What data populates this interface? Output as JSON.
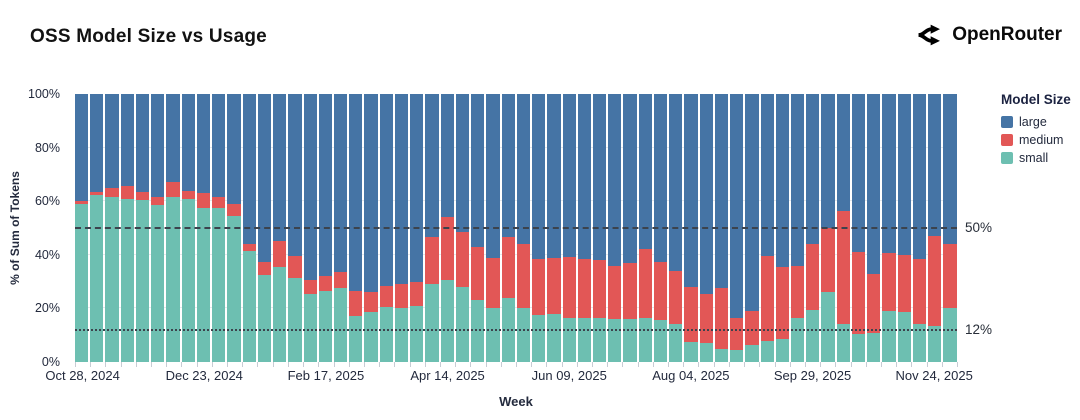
{
  "header": {
    "title": "OSS Model Size vs Usage",
    "brand": "OpenRouter"
  },
  "chart_data": {
    "type": "bar",
    "stacked": true,
    "title": "OSS Model Size vs Usage",
    "xlabel": "Week",
    "ylabel": "% of Sum of Tokens",
    "ylim": [
      0,
      100
    ],
    "y_ticks": [
      0,
      20,
      40,
      60,
      80,
      100
    ],
    "y_tick_suffix": "%",
    "grid": "horizontal",
    "legend": {
      "title": "Model Size",
      "position": "right",
      "entries": [
        {
          "name": "large",
          "color": "#4574a5"
        },
        {
          "name": "medium",
          "color": "#e25756"
        },
        {
          "name": "small",
          "color": "#6dbfb1"
        }
      ]
    },
    "reference_lines": [
      {
        "value": 50,
        "label": "50%",
        "style": "dashed"
      },
      {
        "value": 12,
        "label": "12%",
        "style": "dotted"
      }
    ],
    "x_ticks": [
      {
        "index": 0,
        "label": "Oct 28, 2024"
      },
      {
        "index": 8,
        "label": "Dec 23, 2024"
      },
      {
        "index": 16,
        "label": "Feb 17, 2025"
      },
      {
        "index": 24,
        "label": "Apr 14, 2025"
      },
      {
        "index": 32,
        "label": "Jun 09, 2025"
      },
      {
        "index": 40,
        "label": "Aug 04, 2025"
      },
      {
        "index": 48,
        "label": "Sep 29, 2025"
      },
      {
        "index": 56,
        "label": "Nov 24, 2025"
      }
    ],
    "categories": [
      "2024-10-28",
      "2024-11-04",
      "2024-11-11",
      "2024-11-18",
      "2024-11-25",
      "2024-12-02",
      "2024-12-09",
      "2024-12-16",
      "2024-12-23",
      "2024-12-30",
      "2025-01-06",
      "2025-01-13",
      "2025-01-20",
      "2025-01-27",
      "2025-02-03",
      "2025-02-10",
      "2025-02-17",
      "2025-02-24",
      "2025-03-03",
      "2025-03-10",
      "2025-03-17",
      "2025-03-24",
      "2025-03-31",
      "2025-04-07",
      "2025-04-14",
      "2025-04-21",
      "2025-04-28",
      "2025-05-05",
      "2025-05-12",
      "2025-05-19",
      "2025-05-26",
      "2025-06-02",
      "2025-06-09",
      "2025-06-16",
      "2025-06-23",
      "2025-06-30",
      "2025-07-07",
      "2025-07-14",
      "2025-07-21",
      "2025-07-28",
      "2025-08-04",
      "2025-08-11",
      "2025-08-18",
      "2025-08-25",
      "2025-09-01",
      "2025-09-08",
      "2025-09-15",
      "2025-09-22",
      "2025-09-29",
      "2025-10-06",
      "2025-10-13",
      "2025-10-20",
      "2025-10-27",
      "2025-11-03",
      "2025-11-10",
      "2025-11-17",
      "2025-11-24",
      "2025-12-01"
    ],
    "series": [
      {
        "name": "small",
        "color": "#6dbfb1",
        "values": [
          59,
          62.5,
          61.5,
          61,
          60.5,
          58.5,
          61.5,
          61,
          57.5,
          57.5,
          54.5,
          41.5,
          32.5,
          35.5,
          31.5,
          25.5,
          26.5,
          27.5,
          17,
          18.5,
          20.5,
          20,
          21,
          29,
          30.5,
          28,
          23,
          20,
          24,
          20,
          17.5,
          18,
          16.5,
          16.5,
          16.5,
          16,
          16,
          16.5,
          15.5,
          14,
          7.5,
          7,
          5,
          4.5,
          6.5,
          8,
          8.5,
          16.5,
          19.5,
          26,
          14,
          10.5,
          11,
          19,
          18.5,
          14,
          13.5,
          20
        ]
      },
      {
        "name": "medium",
        "color": "#e25756",
        "values": [
          1,
          1,
          3.5,
          4.5,
          3,
          3,
          5.5,
          3,
          5.5,
          4,
          4.5,
          2.5,
          5,
          9.5,
          8,
          5,
          5.5,
          6,
          9.5,
          7.5,
          8,
          9,
          9,
          17.5,
          23.5,
          20.5,
          20,
          19,
          22.5,
          24,
          21,
          21,
          22.5,
          22,
          21.5,
          20,
          21,
          25.5,
          22,
          20,
          20.5,
          18.5,
          22.5,
          12,
          12.5,
          31.5,
          27,
          19.5,
          24.5,
          24,
          42.5,
          30.5,
          22,
          21.5,
          21.5,
          24.5,
          33.5,
          24
        ]
      },
      {
        "name": "large",
        "color": "#4574a5",
        "values": [
          40,
          36.5,
          35,
          34.5,
          36.5,
          38.5,
          33,
          36,
          37,
          38.5,
          41,
          56,
          62.5,
          55,
          60.5,
          69.5,
          68,
          66.5,
          73.5,
          74,
          71.5,
          71,
          70,
          53.5,
          46,
          51.5,
          57,
          61,
          53.5,
          56,
          61.5,
          61,
          61,
          61.5,
          62,
          64,
          63,
          58,
          62.5,
          66,
          72,
          74.5,
          72.5,
          83.5,
          81,
          60.5,
          64.5,
          64,
          56,
          50,
          43.5,
          59,
          67,
          59.5,
          60,
          61.5,
          53,
          56
        ]
      }
    ]
  }
}
